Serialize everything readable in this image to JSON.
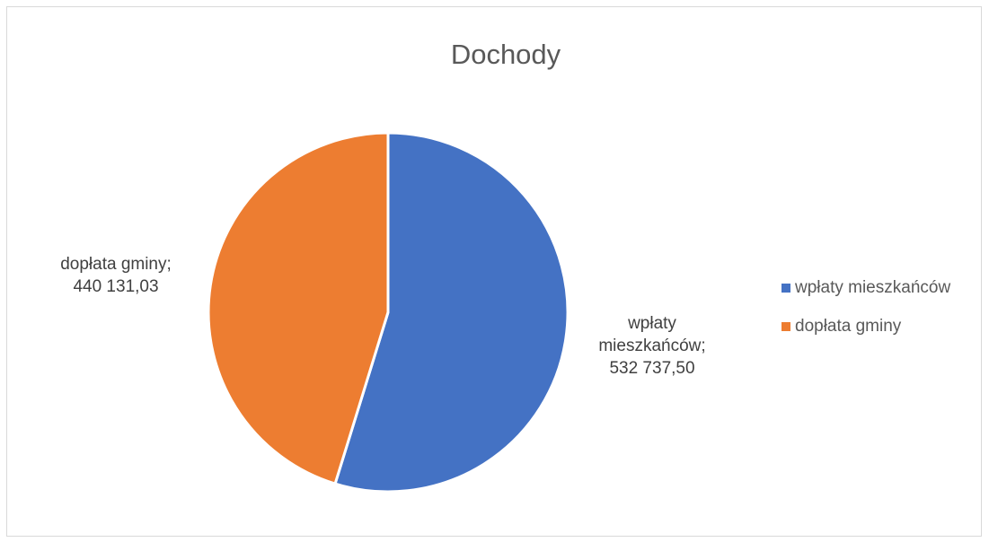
{
  "chart_data": {
    "type": "pie",
    "title": "Dochody",
    "categories": [
      "wpłaty mieszkańców",
      "dopłata gminy"
    ],
    "values": [
      532737.5,
      440131.03
    ],
    "value_labels": [
      "532 737,50",
      "440 131,03"
    ],
    "data_labels": [
      [
        "wpłaty",
        "mieszkańców;",
        "532 737,50"
      ],
      [
        "dopłata gminy;",
        "440 131,03"
      ]
    ],
    "colors": [
      "#4472C4",
      "#ED7D31"
    ],
    "legend_position": "right"
  }
}
